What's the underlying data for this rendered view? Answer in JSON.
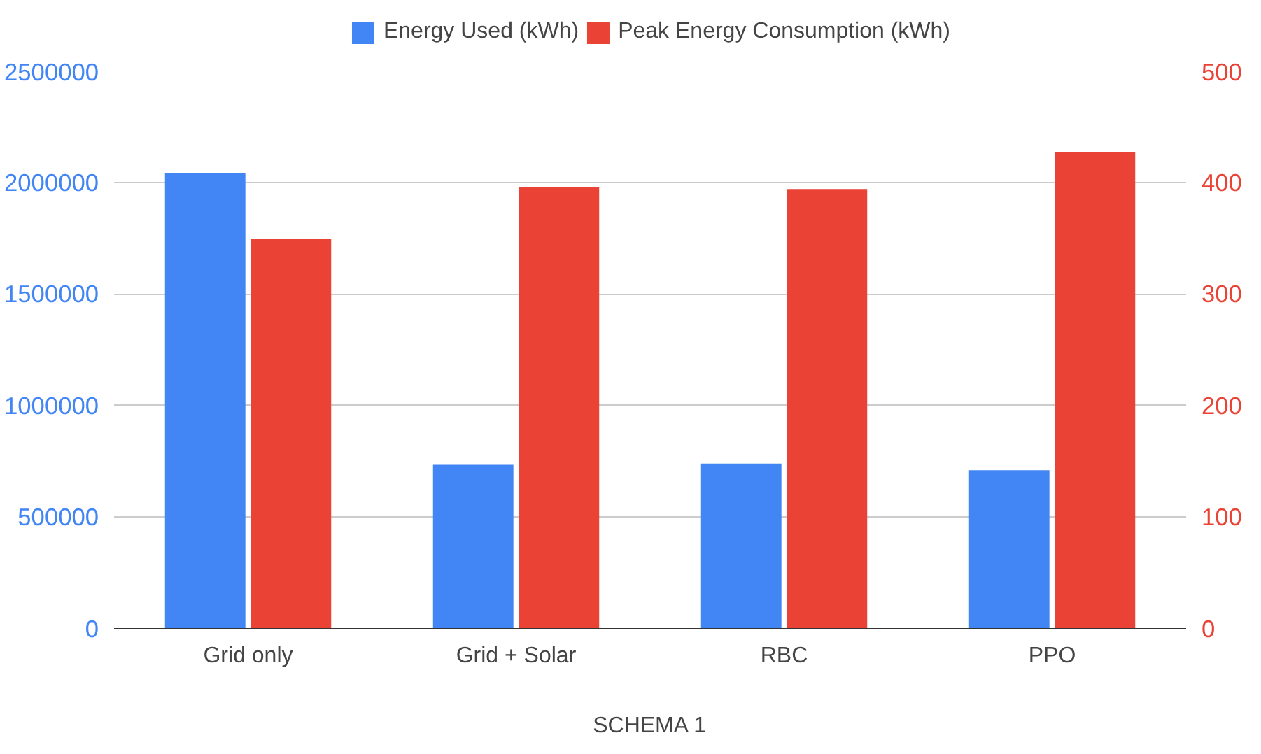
{
  "chart_data": {
    "type": "bar",
    "xlabel": "SCHEMA 1",
    "categories": [
      "Grid only",
      "Grid + Solar",
      "RBC",
      "PPO"
    ],
    "series": [
      {
        "name": "Energy Used (kWh)",
        "color": "#4285f4",
        "values": [
          2040000,
          735000,
          740000,
          710000
        ]
      },
      {
        "name": "Peak Energy Consumption (kWh)",
        "color": "#ea4335",
        "values": [
          349,
          396,
          394,
          427
        ],
        "axis": "y2"
      }
    ],
    "ylim": [
      0,
      2500000
    ],
    "yticks": [
      0,
      500000,
      1000000,
      1500000,
      2000000,
      2500000
    ],
    "y2lim": [
      0,
      500
    ],
    "y2ticks": [
      0,
      100,
      200,
      300,
      400,
      500
    ],
    "grid": "y",
    "legend": "top"
  }
}
